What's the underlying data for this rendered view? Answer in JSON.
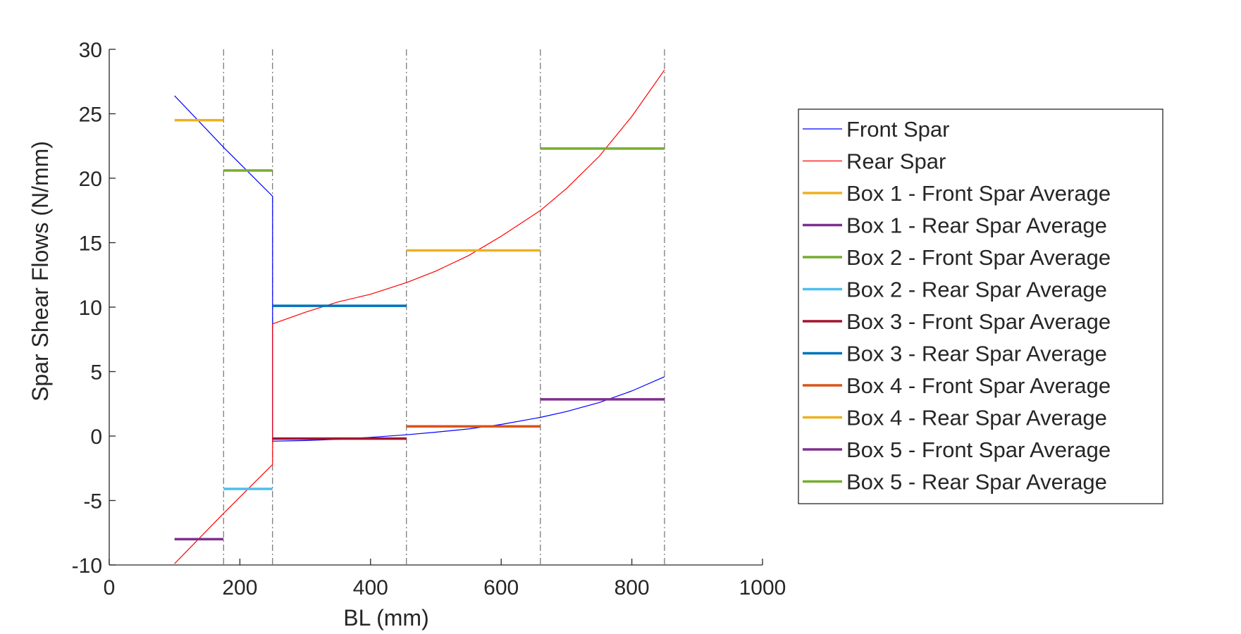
{
  "chart_data": {
    "type": "line",
    "title": "",
    "xlabel": "BL (mm)",
    "ylabel": "Spar Shear Flows (N/mm)",
    "xlim": [
      0,
      1000
    ],
    "ylim": [
      -10,
      30
    ],
    "xticks": [
      0,
      200,
      400,
      600,
      800,
      1000
    ],
    "yticks": [
      -10,
      -5,
      0,
      5,
      10,
      15,
      20,
      25,
      30
    ],
    "grid": false,
    "legend_position": "outside-right",
    "box_boundaries": [
      100,
      175,
      250,
      455,
      660,
      850
    ],
    "series": [
      {
        "name": "Front Spar",
        "kind": "curve",
        "color": "#0000ff",
        "points": [
          [
            100,
            26.4
          ],
          [
            175,
            22.4
          ],
          [
            250,
            18.6
          ],
          [
            250,
            -0.4
          ],
          [
            300,
            -0.35
          ],
          [
            350,
            -0.25
          ],
          [
            400,
            -0.1
          ],
          [
            455,
            0.1
          ],
          [
            500,
            0.3
          ],
          [
            550,
            0.55
          ],
          [
            600,
            0.9
          ],
          [
            660,
            1.45
          ],
          [
            700,
            1.9
          ],
          [
            750,
            2.6
          ],
          [
            800,
            3.5
          ],
          [
            850,
            4.6
          ]
        ]
      },
      {
        "name": "Rear Spar",
        "kind": "curve",
        "color": "#ff0000",
        "points": [
          [
            100,
            -9.9
          ],
          [
            175,
            -6.0
          ],
          [
            250,
            -2.2
          ],
          [
            250,
            8.7
          ],
          [
            300,
            9.6
          ],
          [
            350,
            10.4
          ],
          [
            400,
            11.0
          ],
          [
            455,
            11.9
          ],
          [
            500,
            12.8
          ],
          [
            550,
            14.0
          ],
          [
            600,
            15.5
          ],
          [
            660,
            17.5
          ],
          [
            700,
            19.2
          ],
          [
            750,
            21.7
          ],
          [
            800,
            24.8
          ],
          [
            850,
            28.4
          ]
        ]
      },
      {
        "name": "Box 1 - Front Spar Average",
        "kind": "average",
        "color": "#EDB120",
        "x": [
          100,
          175
        ],
        "value": 24.5
      },
      {
        "name": "Box 1 - Rear Spar Average",
        "kind": "average",
        "color": "#7E2F8E",
        "x": [
          100,
          175
        ],
        "value": -8.0
      },
      {
        "name": "Box 2 - Front Spar Average",
        "kind": "average",
        "color": "#77AC30",
        "x": [
          175,
          250
        ],
        "value": 20.6
      },
      {
        "name": "Box 2 - Rear Spar Average",
        "kind": "average",
        "color": "#4DBEEE",
        "x": [
          175,
          250
        ],
        "value": -4.1
      },
      {
        "name": "Box 3 - Front Spar Average",
        "kind": "average",
        "color": "#A2142F",
        "x": [
          250,
          455
        ],
        "value": -0.2
      },
      {
        "name": "Box 3 - Rear Spar Average",
        "kind": "average",
        "color": "#0072BD",
        "x": [
          250,
          455
        ],
        "value": 10.1
      },
      {
        "name": "Box 4 - Front Spar Average",
        "kind": "average",
        "color": "#D95319",
        "x": [
          455,
          660
        ],
        "value": 0.75
      },
      {
        "name": "Box 4 - Rear Spar Average",
        "kind": "average",
        "color": "#EDB120",
        "x": [
          455,
          660
        ],
        "value": 14.4
      },
      {
        "name": "Box 5 - Front Spar Average",
        "kind": "average",
        "color": "#7E2F8E",
        "x": [
          660,
          850
        ],
        "value": 2.85
      },
      {
        "name": "Box 5 - Rear Spar Average",
        "kind": "average",
        "color": "#77AC30",
        "x": [
          660,
          850
        ],
        "value": 22.3
      }
    ]
  }
}
